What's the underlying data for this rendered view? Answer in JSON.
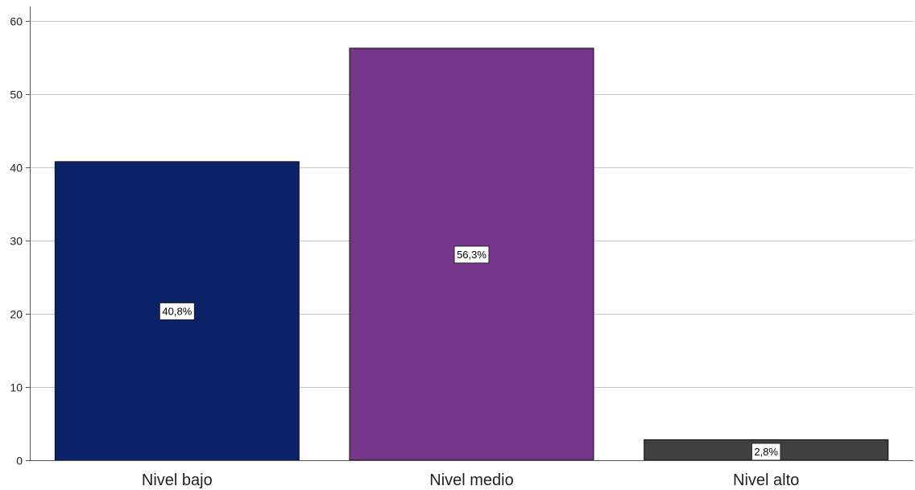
{
  "chart_data": {
    "type": "bar",
    "categories": [
      "Nivel bajo",
      "Nivel medio",
      "Nivel alto"
    ],
    "values": [
      40.8,
      56.3,
      2.8
    ],
    "data_labels": [
      "40,8%",
      "56,3%",
      "2,8%"
    ],
    "colors": [
      "#0b2269",
      "#76368a",
      "#404040"
    ],
    "ylim": [
      0,
      62
    ],
    "yticks": [
      0,
      10,
      20,
      30,
      40,
      50,
      60
    ],
    "grid": true,
    "title": "",
    "xlabel": "",
    "ylabel": ""
  }
}
